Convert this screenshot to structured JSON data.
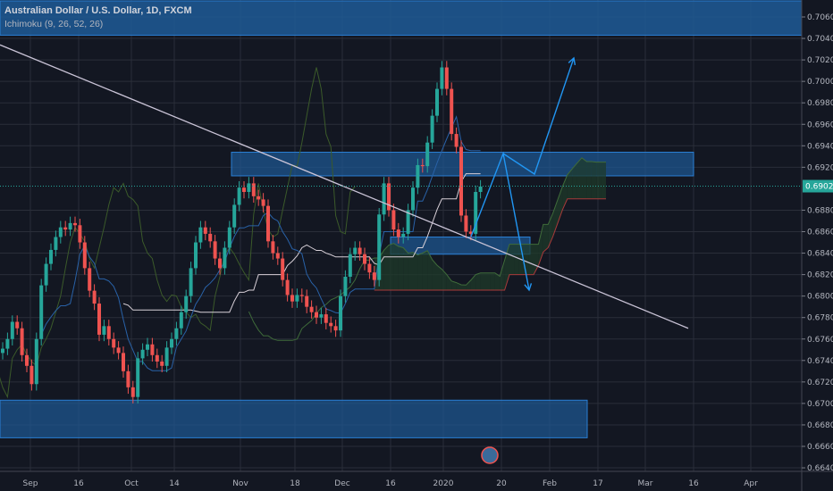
{
  "header": {
    "title": "Australian Dollar / U.S. Dollar, 1D, FXCM",
    "indicator": "Ichimoku (9, 26, 52, 26)"
  },
  "colors": {
    "background": "#131722",
    "up": "#26a69a",
    "down": "#ef5350",
    "zone": "#1e5a96",
    "zone_border": "#2a7fd4",
    "trendline": "#c9c3d6",
    "arrow": "#2196f3",
    "price_badge": "#26a69a"
  },
  "chart_data": {
    "type": "candlestick",
    "symbol": "AUDUSD",
    "timeframe": "1D",
    "ylim": [
      0.6635,
      0.7075
    ],
    "y_ticks": [
      "0.70600",
      "0.70400",
      "0.70200",
      "0.70000",
      "0.69800",
      "0.69600",
      "0.69400",
      "0.69200",
      "0.68800",
      "0.68600",
      "0.68400",
      "0.68200",
      "0.68000",
      "0.67800",
      "0.67600",
      "0.67400",
      "0.67200",
      "0.67000",
      "0.66800",
      "0.66600",
      "0.66400"
    ],
    "x_ticks": [
      "Sep",
      "16",
      "Oct",
      "14",
      "Nov",
      "18",
      "Dec",
      "16",
      "2020",
      "20",
      "Feb",
      "17",
      "Mar",
      "16",
      "Apr"
    ],
    "last_price": "0.69024",
    "closes": [
      0.6751,
      0.676,
      0.6776,
      0.677,
      0.6745,
      0.6735,
      0.6718,
      0.676,
      0.681,
      0.683,
      0.6843,
      0.6855,
      0.6864,
      0.6862,
      0.6868,
      0.6866,
      0.685,
      0.6826,
      0.6805,
      0.6793,
      0.6764,
      0.6772,
      0.676,
      0.6752,
      0.6747,
      0.673,
      0.6715,
      0.6706,
      0.6742,
      0.675,
      0.6755,
      0.6745,
      0.6739,
      0.6735,
      0.6752,
      0.676,
      0.677,
      0.6785,
      0.68,
      0.6826,
      0.685,
      0.6864,
      0.6858,
      0.6851,
      0.6835,
      0.6826,
      0.6845,
      0.6864,
      0.6885,
      0.6901,
      0.6897,
      0.6905,
      0.6893,
      0.689,
      0.6884,
      0.6851,
      0.684,
      0.6835,
      0.6815,
      0.6801,
      0.6795,
      0.6801,
      0.68,
      0.679,
      0.6785,
      0.678,
      0.6783,
      0.6775,
      0.6772,
      0.6768,
      0.68,
      0.6818,
      0.6839,
      0.6845,
      0.6839,
      0.683,
      0.6822,
      0.6815,
      0.6876,
      0.6905,
      0.688,
      0.6862,
      0.6855,
      0.6858,
      0.688,
      0.6901,
      0.6922,
      0.6921,
      0.6943,
      0.6968,
      0.6993,
      0.7013,
      0.6993,
      0.6951,
      0.6939,
      0.6875,
      0.686,
      0.6858,
      0.6897,
      0.6902
    ],
    "zones": [
      {
        "top": 0.7075,
        "bottom": 0.7043
      },
      {
        "top": 0.6934,
        "bottom": 0.6912
      },
      {
        "top": 0.6855,
        "bottom": 0.6839
      },
      {
        "top": 0.6703,
        "bottom": 0.6668
      }
    ],
    "trendline": {
      "from": 0.7034,
      "to": 0.677
    }
  }
}
